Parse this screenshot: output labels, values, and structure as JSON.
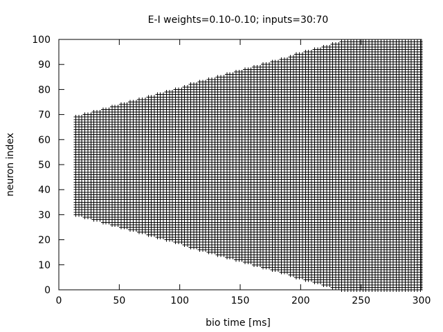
{
  "chart_data": {
    "type": "scatter",
    "title": "E-I weights=0.10-0.10; inputs=30:70",
    "xlabel": "bio time [ms]",
    "ylabel": "neuron index",
    "xlim": [
      0,
      300
    ],
    "ylim": [
      0,
      100
    ],
    "xticks": [
      "0",
      "50",
      "100",
      "150",
      "200",
      "250",
      "300"
    ],
    "yticks": [
      "0",
      "10",
      "20",
      "30",
      "40",
      "50",
      "60",
      "70",
      "80",
      "90",
      "100"
    ],
    "grid": false,
    "legend": "none",
    "marker": "+",
    "series": [
      {
        "description_points": {
          "start_time": 14,
          "end_time": 300,
          "time_step": 2.5,
          "initial_neurons": [
            30,
            70
          ],
          "spread_rate_per_ms": 0.137
        },
        "color": "#000000"
      }
    ]
  }
}
